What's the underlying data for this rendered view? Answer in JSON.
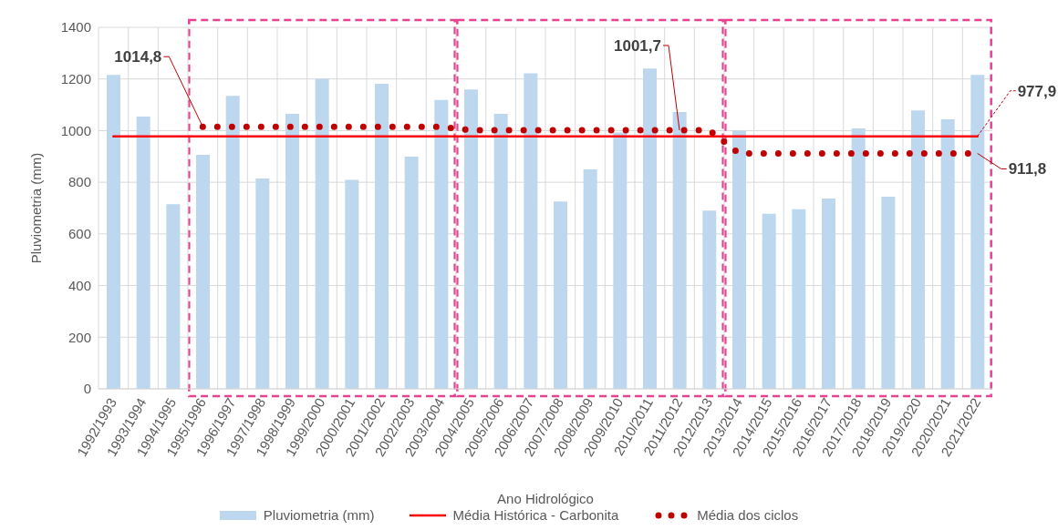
{
  "chart_data": {
    "type": "bar",
    "xlabel": "Ano Hidrológico",
    "ylabel": "Pluviometria (mm)",
    "categories": [
      "1992/1993",
      "1993/1994",
      "1994/1995",
      "1995/1996",
      "1996/1997",
      "1997/1998",
      "1998/1999",
      "1999/2000",
      "2000/2001",
      "2001/2002",
      "2002/2003",
      "2003/2004",
      "2004/2005",
      "2005/2006",
      "2006/2007",
      "2007/2008",
      "2008/2009",
      "2009/2010",
      "2010/2011",
      "2011/2012",
      "2012/2013",
      "2013/2014",
      "2014/2015",
      "2015/2016",
      "2016/2017",
      "2017/2018",
      "2018/2019",
      "2019/2020",
      "2020/2021",
      "2021/2022"
    ],
    "series": [
      {
        "name": "Pluviometria (mm)",
        "color": "#bdd7ee",
        "values": [
          1216,
          1054,
          715,
          906,
          1135,
          815,
          1065,
          1201,
          809,
          1181,
          899,
          1119,
          1159,
          1065,
          1222,
          726,
          850,
          993,
          1240,
          1072,
          690,
          1000,
          678,
          696,
          737,
          1009,
          744,
          1078,
          1044,
          1216
        ]
      },
      {
        "name": "Média Histórica - Carbonita",
        "type": "line",
        "color": "#ff0000",
        "line_style": "solid",
        "values": [
          977.9,
          977.9,
          977.9,
          977.9,
          977.9,
          977.9,
          977.9,
          977.9,
          977.9,
          977.9,
          977.9,
          977.9,
          977.9,
          977.9,
          977.9,
          977.9,
          977.9,
          977.9,
          977.9,
          977.9,
          977.9,
          977.9,
          977.9,
          977.9,
          977.9,
          977.9,
          977.9,
          977.9,
          977.9,
          977.9
        ]
      },
      {
        "name": "Média dos ciclos",
        "type": "line",
        "color": "#c00000",
        "line_style": "dotted",
        "values": [
          null,
          null,
          null,
          1014.8,
          1014.8,
          1014.8,
          1014.8,
          1014.8,
          1014.8,
          1014.8,
          1014.8,
          1014.8,
          1001.7,
          1001.7,
          1001.7,
          1001.7,
          1001.7,
          1001.7,
          1001.7,
          1001.7,
          1001.7,
          911.8,
          911.8,
          911.8,
          911.8,
          911.8,
          911.8,
          911.8,
          911.8,
          911.8
        ]
      }
    ],
    "ylim": [
      0,
      1400
    ],
    "yticks": [
      0,
      200,
      400,
      600,
      800,
      1000,
      1200,
      1400
    ],
    "grid": true,
    "legend": "bottom",
    "annotations": [
      {
        "text": "1014,8",
        "x": "1995/1996",
        "y": 1014.8
      },
      {
        "text": "1001,7",
        "x": "2011/2012",
        "y": 1001.7
      },
      {
        "text": "977,9",
        "x": "2021/2022",
        "y": 977.9
      },
      {
        "text": "911,8",
        "x": "2021/2022",
        "y": 911.8
      }
    ]
  }
}
